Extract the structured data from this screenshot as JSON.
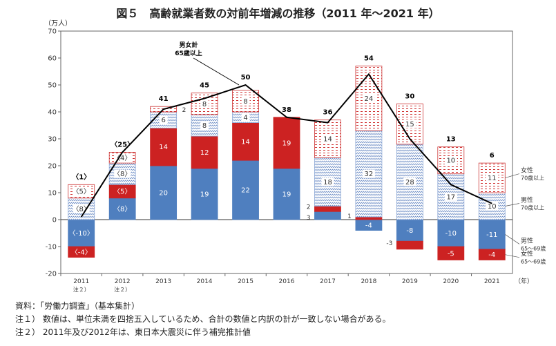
{
  "title": "図５　高齢就業者数の対前年増減の推移（2011 年～2021 年）",
  "notes": [
    "資料：「労働力調査」（基本集計）",
    "注１） 数値は、単位未満を四捨五入しているため、合計の数値と内訳の計が一致しない場合がある。",
    "注２） 2011年及び2012年は、東日本大震災に伴う補完推計値"
  ],
  "chart_data": {
    "type": "bar",
    "stacked": true,
    "unit_label": "（万人）",
    "x_unit_label": "（年）",
    "categories": [
      "2011",
      "2012",
      "2013",
      "2014",
      "2015",
      "2016",
      "2017",
      "2018",
      "2019",
      "2020",
      "2021"
    ],
    "category_notes": [
      "注２）",
      "注２）",
      "",
      "",
      "",
      "",
      "",
      "",
      "",
      "",
      ""
    ],
    "ylim": [
      -20,
      70
    ],
    "yticks": [
      -20,
      -10,
      0,
      10,
      20,
      30,
      40,
      50,
      60,
      70
    ],
    "grid": false,
    "colors": {
      "male6569": "#4f7fbf",
      "female6569": "#cc2222",
      "male70": "#8ea9d6",
      "female70": "#e06060"
    },
    "series": [
      {
        "key": "male6569",
        "legend": "男性\n65～69歳",
        "values": [
          -10,
          8,
          20,
          19,
          22,
          19,
          3,
          -4,
          -8,
          -10,
          -11
        ],
        "labels": [
          "〈-10〉",
          "〈8〉",
          "20",
          "19",
          "22",
          "19",
          "3",
          "-4",
          "-8",
          "-10",
          "-11"
        ]
      },
      {
        "key": "female6569",
        "legend": "女性\n65～69歳",
        "values": [
          -4,
          5,
          14,
          12,
          14,
          19,
          2,
          1,
          -3,
          -5,
          -4
        ],
        "labels": [
          "〈-4〉",
          "〈5〉",
          "14",
          "12",
          "14",
          "19",
          "2",
          "1",
          "-3",
          "-5",
          "-4"
        ]
      },
      {
        "key": "male70",
        "legend": "男性\n70歳以上",
        "values": [
          8,
          8,
          6,
          8,
          4,
          0,
          18,
          32,
          28,
          17,
          10
        ],
        "labels": [
          "〈8〉",
          "〈8〉",
          "6",
          "8",
          "4",
          "",
          "18",
          "32",
          "28",
          "17",
          "10"
        ]
      },
      {
        "key": "female70",
        "legend": "女性\n70歳以上",
        "values": [
          5,
          4,
          2,
          8,
          8,
          0,
          14,
          24,
          15,
          10,
          11
        ],
        "labels": [
          "〈5〉",
          "〈4〉",
          "2",
          "8",
          "8",
          "",
          "14",
          "24",
          "15",
          "10",
          "11"
        ]
      }
    ],
    "total": {
      "name": "男女計\n65歳以上",
      "values": [
        1,
        25,
        41,
        45,
        50,
        38,
        36,
        54,
        30,
        13,
        6
      ],
      "labels": [
        "〈1〉",
        "〈25〉",
        "41",
        "45",
        "50",
        "38",
        "36",
        "54",
        "30",
        "13",
        "6"
      ]
    }
  }
}
